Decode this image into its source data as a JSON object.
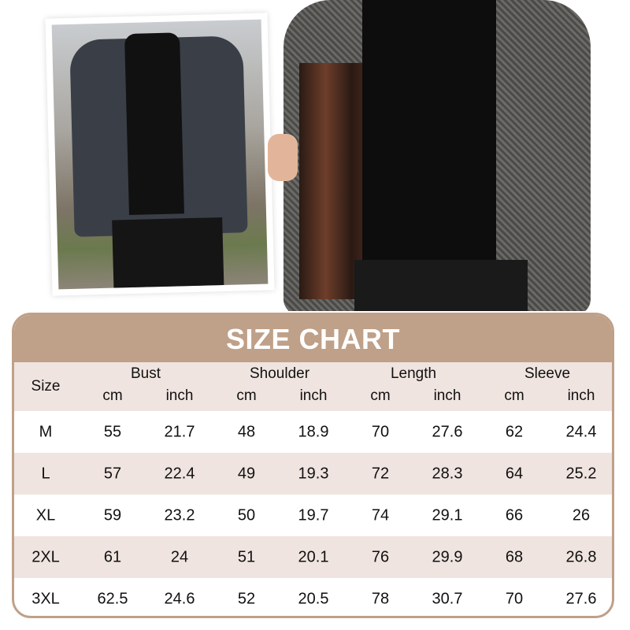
{
  "title": "SIZE CHART",
  "size_label": "Size",
  "groups": [
    "Bust",
    "Shoulder",
    "Length",
    "Sleeve"
  ],
  "units": [
    "cm",
    "inch"
  ],
  "rows": [
    [
      "M",
      "55",
      "21.7",
      "48",
      "18.9",
      "70",
      "27.6",
      "62",
      "24.4"
    ],
    [
      "L",
      "57",
      "22.4",
      "49",
      "19.3",
      "72",
      "28.3",
      "64",
      "25.2"
    ],
    [
      "XL",
      "59",
      "23.2",
      "50",
      "19.7",
      "74",
      "29.1",
      "66",
      "26"
    ],
    [
      "2XL",
      "61",
      "24",
      "51",
      "20.1",
      "76",
      "29.9",
      "68",
      "26.8"
    ],
    [
      "3XL",
      "62.5",
      "24.6",
      "52",
      "20.5",
      "78",
      "30.7",
      "70",
      "27.6"
    ]
  ],
  "colors": {
    "accent": "#bfa088",
    "stripe": "#efe4df"
  }
}
